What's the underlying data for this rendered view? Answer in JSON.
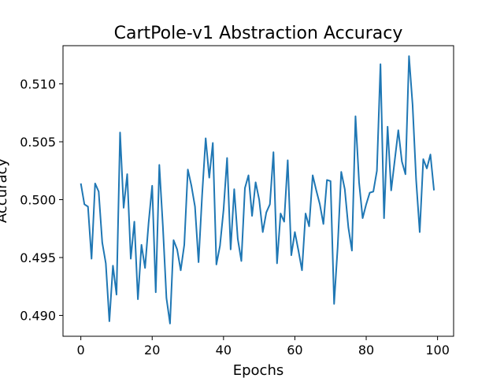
{
  "chart_data": {
    "type": "line",
    "title": "CartPole-v1 Abstraction Accuracy",
    "xlabel": "Epochs",
    "ylabel": "Accuracy",
    "xlim": [
      -5,
      104.5
    ],
    "ylim": [
      0.4882,
      0.5133
    ],
    "xticks": [
      0,
      20,
      40,
      60,
      80,
      100
    ],
    "yticks": [
      0.49,
      0.495,
      0.5,
      0.505,
      0.51
    ],
    "ytick_labels": [
      "0.490",
      "0.495",
      "0.500",
      "0.505",
      "0.510"
    ],
    "grid": false,
    "series": [
      {
        "color": "#1f77b4",
        "x": [
          0,
          1,
          2,
          3,
          4,
          5,
          6,
          7,
          8,
          9,
          10,
          11,
          12,
          13,
          14,
          15,
          16,
          17,
          18,
          19,
          20,
          21,
          22,
          23,
          24,
          25,
          26,
          27,
          28,
          29,
          30,
          31,
          32,
          33,
          34,
          35,
          36,
          37,
          38,
          39,
          40,
          41,
          42,
          43,
          44,
          45,
          46,
          47,
          48,
          49,
          50,
          51,
          52,
          53,
          54,
          55,
          56,
          57,
          58,
          59,
          60,
          61,
          62,
          63,
          64,
          65,
          66,
          67,
          68,
          69,
          70,
          71,
          72,
          73,
          74,
          75,
          76,
          77,
          78,
          79,
          80,
          81,
          82,
          83,
          84,
          85,
          86,
          87,
          88,
          89,
          90,
          91,
          92,
          93,
          94,
          95,
          96,
          97,
          98,
          99
        ],
        "values": [
          0.5014,
          0.4996,
          0.4994,
          0.4949,
          0.5014,
          0.5007,
          0.4963,
          0.4945,
          0.4895,
          0.4943,
          0.4918,
          0.5058,
          0.4993,
          0.5022,
          0.4949,
          0.4981,
          0.4914,
          0.4961,
          0.4941,
          0.498,
          0.5012,
          0.492,
          0.503,
          0.4977,
          0.4915,
          0.4893,
          0.4965,
          0.4957,
          0.4939,
          0.4961,
          0.5026,
          0.5012,
          0.4994,
          0.4946,
          0.5004,
          0.5053,
          0.5019,
          0.5049,
          0.4944,
          0.496,
          0.4991,
          0.5036,
          0.4957,
          0.5009,
          0.4966,
          0.4947,
          0.501,
          0.5021,
          0.4986,
          0.5015,
          0.5,
          0.4972,
          0.4989,
          0.4996,
          0.5041,
          0.4945,
          0.4988,
          0.4981,
          0.5034,
          0.4952,
          0.4972,
          0.4956,
          0.4939,
          0.4988,
          0.4977,
          0.5021,
          0.5008,
          0.4996,
          0.4979,
          0.5017,
          0.5016,
          0.491,
          0.4959,
          0.5024,
          0.5009,
          0.4976,
          0.4956,
          0.5072,
          0.5015,
          0.4984,
          0.4996,
          0.5006,
          0.5007,
          0.5025,
          0.5117,
          0.4984,
          0.5063,
          0.5008,
          0.5034,
          0.506,
          0.5033,
          0.5022,
          0.5124,
          0.5082,
          0.5017,
          0.4972,
          0.5035,
          0.5027,
          0.5039,
          0.5008
        ]
      }
    ]
  }
}
